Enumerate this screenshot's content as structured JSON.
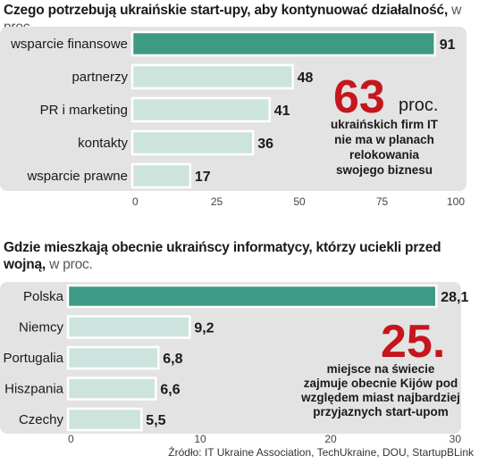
{
  "chart_data": [
    {
      "type": "bar",
      "orientation": "horizontal",
      "title": "Czego potrzebują ukraińskie start-upy, aby kontynuować działalność,",
      "title_unit": "w proc.",
      "categories": [
        "wsparcie finansowe",
        "partnerzy",
        "PR i marketing",
        "kontakty",
        "wsparcie prawne"
      ],
      "values": [
        91,
        48,
        41,
        36,
        17
      ],
      "value_labels": [
        "91",
        "48",
        "41",
        "36",
        "17"
      ],
      "xlim": [
        0,
        100
      ],
      "ticks": [
        0,
        25,
        50,
        75,
        100
      ],
      "tick_labels": [
        "0",
        "25",
        "50",
        "75",
        "100"
      ],
      "highlight_color": "#3d9a84",
      "bar_color": "#cde4de",
      "annotation": {
        "big": "63",
        "big_unit": "proc.",
        "lines": [
          "ukraińskich firm IT",
          "nie ma w planach",
          "relokowania",
          "swojego biznesu"
        ]
      }
    },
    {
      "type": "bar",
      "orientation": "horizontal",
      "title_lines": [
        "Gdzie mieszkają obecnie ukraińscy informatycy, którzy uciekli przed",
        "wojną,"
      ],
      "title_unit": "w proc.",
      "categories": [
        "Polska",
        "Niemcy",
        "Portugalia",
        "Hiszpania",
        "Czechy"
      ],
      "values": [
        28.1,
        9.2,
        6.8,
        6.6,
        5.5
      ],
      "value_labels": [
        "28,1",
        "9,2",
        "6,8",
        "6,6",
        "5,5"
      ],
      "xlim": [
        0,
        30
      ],
      "ticks": [
        0,
        10,
        20,
        30
      ],
      "tick_labels": [
        "0",
        "10",
        "20",
        "30"
      ],
      "highlight_color": "#3d9a84",
      "bar_color": "#cde4de",
      "annotation": {
        "big": "25.",
        "lines": [
          "miejsce na świecie",
          "zajmuje obecnie Kijów pod",
          "względem miast najbardziej",
          "przyjaznych start-upom"
        ]
      }
    }
  ],
  "source": "Źródło:  IT Ukraine Association, TechUkraine, DOU, StartupBLink"
}
